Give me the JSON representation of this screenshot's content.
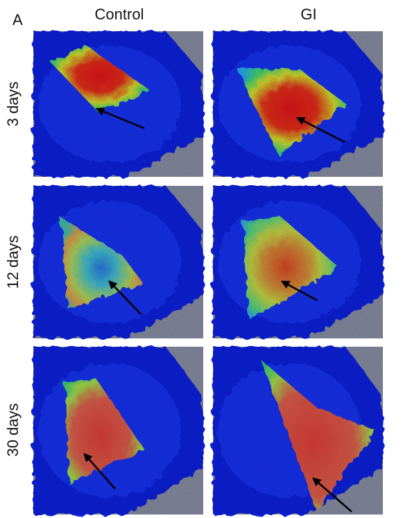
{
  "panel_label": "A",
  "columns": [
    "Control",
    "GI"
  ],
  "rows": [
    "3 days",
    "12 days",
    "30 days"
  ]
}
